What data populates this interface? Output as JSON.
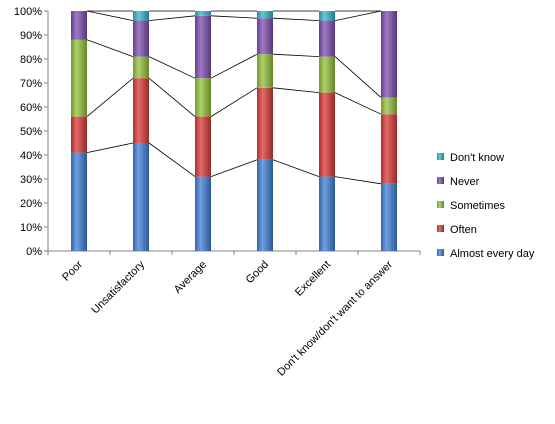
{
  "chart_data": {
    "type": "bar",
    "stacked": true,
    "percent": true,
    "categories": [
      "Poor",
      "Unsatisfactory",
      "Average",
      "Good",
      "Excellent",
      "Don't know/don't want to answer"
    ],
    "series": [
      {
        "name": "Almost every day",
        "color": "#3e7fd6",
        "values": [
          41,
          45,
          31,
          38,
          31,
          28
        ]
      },
      {
        "name": "Often",
        "color": "#d93a36",
        "values": [
          15,
          27,
          25,
          30,
          35,
          29
        ]
      },
      {
        "name": "Sometimes",
        "color": "#92c03a",
        "values": [
          32,
          9,
          16,
          14,
          15,
          7
        ]
      },
      {
        "name": "Never",
        "color": "#7d4fb0",
        "values": [
          12,
          15,
          26,
          15,
          15,
          36
        ]
      },
      {
        "name": "Don't know",
        "color": "#33b4c9",
        "values": [
          0,
          4,
          2,
          3,
          4,
          0
        ]
      }
    ],
    "ylim": [
      0,
      100
    ],
    "yticks": [
      "0%",
      "10%",
      "20%",
      "30%",
      "40%",
      "50%",
      "60%",
      "70%",
      "80%",
      "90%",
      "100%"
    ],
    "series_lines": true,
    "grid": false,
    "legend": "right"
  }
}
